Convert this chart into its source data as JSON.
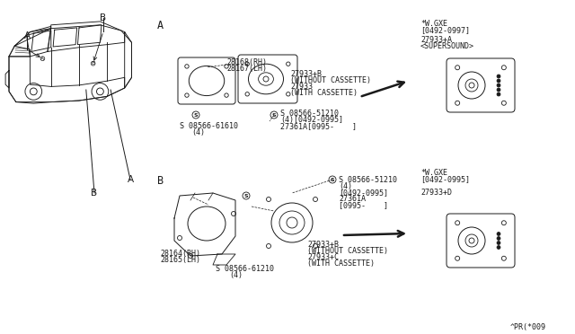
{
  "bg_color": "#ffffff",
  "line_color": "#1a1a1a",
  "fig_width": 6.4,
  "fig_height": 3.72,
  "dpi": 100,
  "parts": {
    "top_bracket_rh": "28168(RH)",
    "top_bracket_lh": "28167(LH)",
    "top_speaker_b": "27933+B",
    "top_without_cassette": "(WITHOUT CASSETTE)",
    "top_speaker": "27933",
    "top_with_cassette": "(WITH CASSETTE)",
    "screw_top_left": "08566-61610",
    "screw_top_left_qty": "(4)",
    "screw_top_right": "08566-51210",
    "screw_top_right_qty": "(4)[0492-0995]",
    "adapter_top": "27361A[0995-    ]",
    "wgxe_top_label": "*W.GXE",
    "wgxe_top_date": "[0492-0997]",
    "supersound_label": "27933+A",
    "supersound_sub": "<SUPERSOUND>",
    "bottom_bracket_rh": "28164(RH)",
    "bottom_bracket_lh": "28165(LH)",
    "screw_bottom_left": "08566-61210",
    "screw_bottom_left_qty": "(4)",
    "bottom_speaker_b": "27933+B",
    "bottom_without_cassette": "(WITHOUT CASSETTE)",
    "bottom_speaker_c": "27933+C",
    "bottom_with_cassette": "(WITH CASSETTE)",
    "screw_bottom_right": "08566-51210",
    "screw_bottom_right_qty": "(4)",
    "screw_bottom_right_date": "[0492-0995]",
    "adapter_bottom1": "27361A",
    "adapter_bottom2": "[0995-    ]",
    "wgxe_bottom_label": "*W.GXE",
    "wgxe_bottom_date": "[0492-0995]",
    "bottom_speaker_d": "27933+D",
    "footer": "^PR(*009",
    "label_A_sec": "A",
    "label_B_sec": "B"
  }
}
